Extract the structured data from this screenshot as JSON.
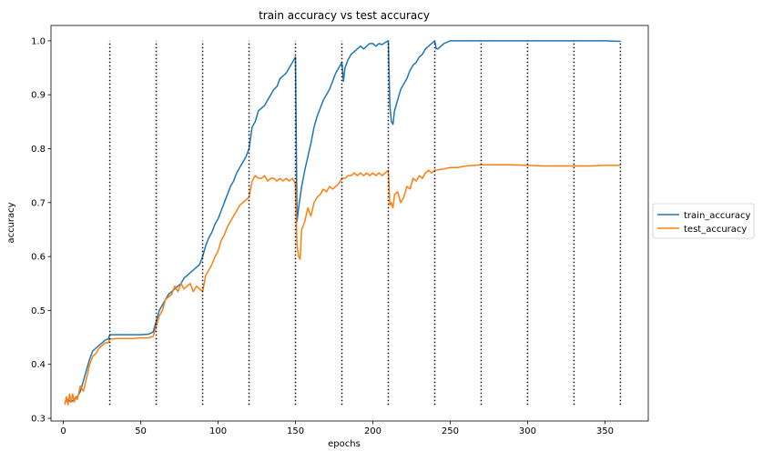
{
  "chart_data": {
    "type": "line",
    "title": "train accuracy vs test accuracy",
    "xlabel": "epochs",
    "ylabel": "accuracy",
    "xlim": [
      -8,
      378
    ],
    "ylim": [
      0.295,
      1.0285
    ],
    "xticks": [
      0,
      50,
      100,
      150,
      200,
      250,
      300,
      350
    ],
    "yticks": [
      0.3,
      0.4,
      0.5,
      0.6,
      0.7,
      0.8,
      0.9,
      1.0
    ],
    "xtick_labels": [
      "0",
      "50",
      "100",
      "150",
      "200",
      "250",
      "300",
      "350"
    ],
    "ytick_labels": [
      "0.3",
      "0.4",
      "0.5",
      "0.6",
      "0.7",
      "0.8",
      "0.9",
      "1.0"
    ],
    "grid": false,
    "legend_position": "right-outside",
    "vertical_lines": {
      "x": [
        30,
        60,
        90,
        120,
        150,
        180,
        210,
        240,
        270,
        300,
        330,
        360
      ],
      "ymin": 0.325,
      "ymax": 1.0,
      "style": "dotted",
      "color": "#000000"
    },
    "series": [
      {
        "name": "train_accuracy",
        "color": "#1f77b4",
        "x": [
          1,
          3,
          5,
          7,
          9,
          11,
          13,
          15,
          17,
          19,
          21,
          23,
          25,
          27,
          29,
          30,
          35,
          40,
          45,
          50,
          55,
          58,
          60,
          62,
          64,
          66,
          68,
          70,
          72,
          74,
          76,
          78,
          80,
          82,
          84,
          86,
          88,
          90,
          92,
          94,
          96,
          98,
          100,
          102,
          104,
          106,
          108,
          110,
          112,
          114,
          116,
          118,
          120,
          122,
          124,
          126,
          128,
          130,
          132,
          134,
          136,
          138,
          140,
          142,
          144,
          146,
          148,
          150,
          151,
          152,
          154,
          156,
          158,
          160,
          162,
          164,
          166,
          168,
          170,
          172,
          174,
          176,
          178,
          180,
          181,
          182,
          184,
          186,
          188,
          190,
          192,
          194,
          196,
          198,
          200,
          202,
          204,
          206,
          208,
          210,
          211,
          212,
          213,
          214,
          216,
          218,
          220,
          222,
          224,
          226,
          228,
          230,
          232,
          234,
          236,
          238,
          240,
          241,
          242,
          244,
          246,
          250,
          260,
          270,
          280,
          290,
          300,
          310,
          320,
          330,
          340,
          350,
          360
        ],
        "y": [
          0.33,
          0.335,
          0.33,
          0.335,
          0.34,
          0.35,
          0.37,
          0.39,
          0.41,
          0.425,
          0.43,
          0.435,
          0.44,
          0.445,
          0.447,
          0.455,
          0.455,
          0.455,
          0.455,
          0.455,
          0.456,
          0.46,
          0.48,
          0.5,
          0.51,
          0.52,
          0.53,
          0.535,
          0.54,
          0.545,
          0.55,
          0.56,
          0.565,
          0.57,
          0.575,
          0.58,
          0.585,
          0.6,
          0.62,
          0.635,
          0.645,
          0.66,
          0.67,
          0.685,
          0.7,
          0.715,
          0.73,
          0.74,
          0.755,
          0.765,
          0.775,
          0.785,
          0.8,
          0.84,
          0.85,
          0.87,
          0.875,
          0.88,
          0.89,
          0.9,
          0.91,
          0.915,
          0.93,
          0.935,
          0.94,
          0.95,
          0.96,
          0.97,
          0.665,
          0.69,
          0.73,
          0.76,
          0.785,
          0.81,
          0.84,
          0.86,
          0.875,
          0.89,
          0.9,
          0.91,
          0.925,
          0.94,
          0.95,
          0.96,
          0.925,
          0.95,
          0.965,
          0.975,
          0.98,
          0.985,
          0.99,
          0.985,
          0.99,
          0.995,
          0.995,
          0.99,
          0.995,
          0.993,
          0.997,
          1.0,
          0.88,
          0.85,
          0.845,
          0.87,
          0.89,
          0.91,
          0.92,
          0.93,
          0.945,
          0.955,
          0.96,
          0.97,
          0.975,
          0.985,
          0.99,
          0.995,
          1.0,
          0.985,
          0.985,
          0.99,
          0.995,
          1.0,
          1.0,
          1.0,
          1.0,
          1.0,
          1.0,
          1.0,
          1.0,
          1.0,
          1.0,
          1.0,
          0.999
        ]
      },
      {
        "name": "test_accuracy",
        "color": "#ff7f0e",
        "x": [
          1,
          2,
          3,
          4,
          5,
          6,
          7,
          8,
          9,
          11,
          13,
          15,
          17,
          19,
          21,
          23,
          25,
          27,
          29,
          30,
          35,
          40,
          45,
          50,
          55,
          58,
          60,
          62,
          64,
          66,
          68,
          70,
          72,
          74,
          76,
          78,
          80,
          82,
          84,
          86,
          88,
          90,
          92,
          94,
          96,
          98,
          100,
          102,
          104,
          106,
          108,
          110,
          112,
          114,
          116,
          118,
          120,
          122,
          124,
          126,
          128,
          130,
          132,
          134,
          136,
          138,
          140,
          142,
          144,
          146,
          148,
          150,
          151,
          152,
          153,
          154,
          156,
          158,
          160,
          162,
          164,
          166,
          168,
          170,
          172,
          174,
          176,
          178,
          180,
          182,
          184,
          186,
          188,
          190,
          192,
          194,
          196,
          198,
          200,
          202,
          204,
          206,
          208,
          210,
          211,
          212,
          213,
          214,
          216,
          218,
          220,
          222,
          224,
          226,
          228,
          230,
          232,
          234,
          236,
          238,
          240,
          245,
          250,
          255,
          260,
          270,
          280,
          290,
          300,
          310,
          320,
          330,
          340,
          350,
          360
        ],
        "y": [
          0.325,
          0.34,
          0.325,
          0.345,
          0.33,
          0.345,
          0.33,
          0.34,
          0.335,
          0.36,
          0.35,
          0.375,
          0.4,
          0.415,
          0.42,
          0.43,
          0.435,
          0.44,
          0.44,
          0.447,
          0.448,
          0.448,
          0.448,
          0.449,
          0.449,
          0.452,
          0.47,
          0.49,
          0.5,
          0.52,
          0.525,
          0.53,
          0.545,
          0.535,
          0.55,
          0.54,
          0.545,
          0.55,
          0.535,
          0.545,
          0.54,
          0.535,
          0.565,
          0.575,
          0.585,
          0.6,
          0.61,
          0.63,
          0.64,
          0.655,
          0.665,
          0.675,
          0.685,
          0.695,
          0.7,
          0.705,
          0.71,
          0.74,
          0.75,
          0.745,
          0.745,
          0.75,
          0.74,
          0.745,
          0.745,
          0.74,
          0.745,
          0.74,
          0.745,
          0.74,
          0.745,
          0.735,
          0.62,
          0.6,
          0.595,
          0.65,
          0.665,
          0.69,
          0.675,
          0.7,
          0.71,
          0.715,
          0.725,
          0.72,
          0.73,
          0.725,
          0.73,
          0.735,
          0.745,
          0.745,
          0.75,
          0.75,
          0.755,
          0.75,
          0.755,
          0.75,
          0.755,
          0.75,
          0.755,
          0.75,
          0.755,
          0.75,
          0.755,
          0.76,
          0.695,
          0.7,
          0.69,
          0.715,
          0.72,
          0.7,
          0.71,
          0.73,
          0.725,
          0.745,
          0.74,
          0.75,
          0.745,
          0.755,
          0.76,
          0.755,
          0.76,
          0.762,
          0.765,
          0.765,
          0.768,
          0.77,
          0.77,
          0.77,
          0.769,
          0.768,
          0.768,
          0.768,
          0.768,
          0.769,
          0.769
        ]
      }
    ]
  }
}
